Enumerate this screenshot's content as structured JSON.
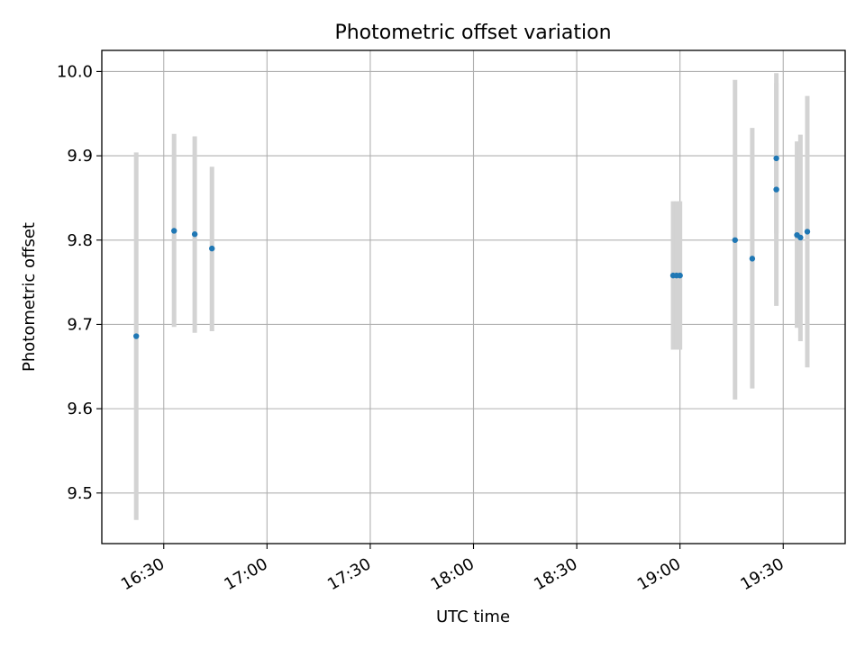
{
  "chart_data": {
    "type": "scatter",
    "title": "Photometric offset variation",
    "xlabel": "UTC time",
    "ylabel": "Photometric offset",
    "xlim": [
      "16:12",
      "19:48"
    ],
    "ylim": [
      9.44,
      10.025
    ],
    "x_ticks": [
      "16:30",
      "17:00",
      "17:30",
      "18:00",
      "18:30",
      "19:00",
      "19:30"
    ],
    "y_ticks": [
      "9.5",
      "9.6",
      "9.7",
      "9.8",
      "9.9",
      "10.0"
    ],
    "grid": true,
    "marker_color": "#1f77b4",
    "errorbar_color": "#d3d3d3",
    "points": [
      {
        "x": "16:22",
        "y": 9.686,
        "ylow": 9.468,
        "yhigh": 9.904
      },
      {
        "x": "16:33",
        "y": 9.811,
        "ylow": 9.697,
        "yhigh": 9.926
      },
      {
        "x": "16:39",
        "y": 9.807,
        "ylow": 9.69,
        "yhigh": 9.923
      },
      {
        "x": "16:44",
        "y": 9.79,
        "ylow": 9.692,
        "yhigh": 9.887
      },
      {
        "x": "18:58",
        "y": 9.758,
        "ylow": 9.67,
        "yhigh": 9.846
      },
      {
        "x": "18:59",
        "y": 9.758,
        "ylow": 9.67,
        "yhigh": 9.846
      },
      {
        "x": "19:00",
        "y": 9.758,
        "ylow": 9.67,
        "yhigh": 9.846
      },
      {
        "x": "19:16",
        "y": 9.8,
        "ylow": 9.611,
        "yhigh": 9.99
      },
      {
        "x": "19:21",
        "y": 9.778,
        "ylow": 9.624,
        "yhigh": 9.933
      },
      {
        "x": "19:28",
        "y": 9.897,
        "ylow": 9.808,
        "yhigh": 9.986
      },
      {
        "x": "19:28",
        "y": 9.86,
        "ylow": 9.722,
        "yhigh": 9.998
      },
      {
        "x": "19:34",
        "y": 9.806,
        "ylow": 9.696,
        "yhigh": 9.917
      },
      {
        "x": "19:35",
        "y": 9.803,
        "ylow": 9.68,
        "yhigh": 9.925
      },
      {
        "x": "19:37",
        "y": 9.81,
        "ylow": 9.649,
        "yhigh": 9.971
      }
    ]
  }
}
